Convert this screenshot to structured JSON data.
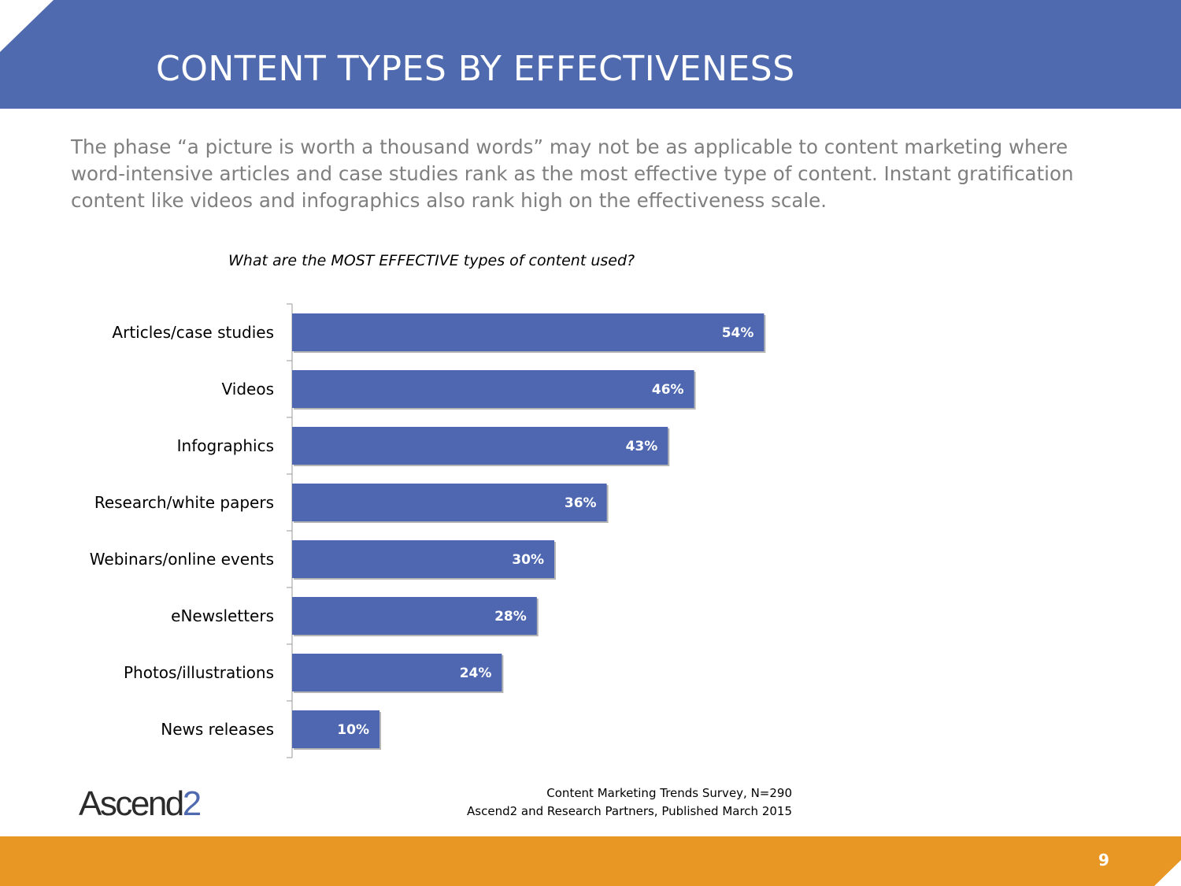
{
  "slide": {
    "title": "CONTENT TYPES BY EFFECTIVENESS",
    "intro": "The phase “a picture is worth a thousand words” may not be as applicable to content marketing where word-intensive articles and case studies rank as the most effective type of content. Instant gratification content like videos and infographics also rank high on the effectiveness scale.",
    "page_number": "9",
    "colors": {
      "header": "#4f6aae",
      "footer": "#e89724",
      "bar": "#4e67b0"
    }
  },
  "brand": {
    "logo_main": "Ascend",
    "logo_accent": "2"
  },
  "source": {
    "line1": "Content Marketing Trends Survey, N=290",
    "line2": "Ascend2 and Research Partners, Published March 2015"
  },
  "chart_data": {
    "type": "bar",
    "orientation": "horizontal",
    "title": "What are the MOST EFFECTIVE types of content used?",
    "categories": [
      "Articles/case studies",
      "Videos",
      "Infographics",
      "Research/white papers",
      "Webinars/online events",
      "eNewsletters",
      "Photos/illustrations",
      "News releases"
    ],
    "values": [
      54,
      46,
      43,
      36,
      30,
      28,
      24,
      10
    ],
    "value_labels": [
      "54%",
      "46%",
      "43%",
      "36%",
      "30%",
      "28%",
      "24%",
      "10%"
    ],
    "unit": "%",
    "xlim": [
      0,
      100
    ],
    "grid": false,
    "legend": "none"
  }
}
